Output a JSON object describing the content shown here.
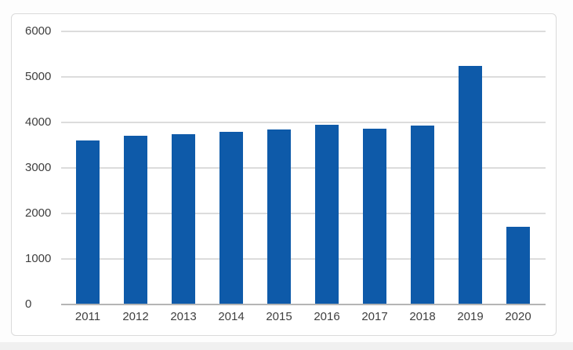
{
  "chart_data": {
    "type": "bar",
    "title": "",
    "xlabel": "",
    "ylabel": "",
    "categories": [
      "2011",
      "2012",
      "2013",
      "2014",
      "2015",
      "2016",
      "2017",
      "2018",
      "2019",
      "2020"
    ],
    "values": [
      3600,
      3700,
      3750,
      3800,
      3850,
      3950,
      3860,
      3930,
      5250,
      1700
    ],
    "ylim": [
      0,
      6000
    ],
    "yticks": [
      0,
      1000,
      2000,
      3000,
      4000,
      5000,
      6000
    ],
    "grid": true,
    "legend": "none",
    "colors": {
      "bar": "#0e5aa9",
      "gridline": "#dcdcdc",
      "axis_line": "#b5b5b5",
      "tick_label": "#3f3f3f",
      "frame_border": "#dadada",
      "plot_background": "#ffffff"
    }
  }
}
